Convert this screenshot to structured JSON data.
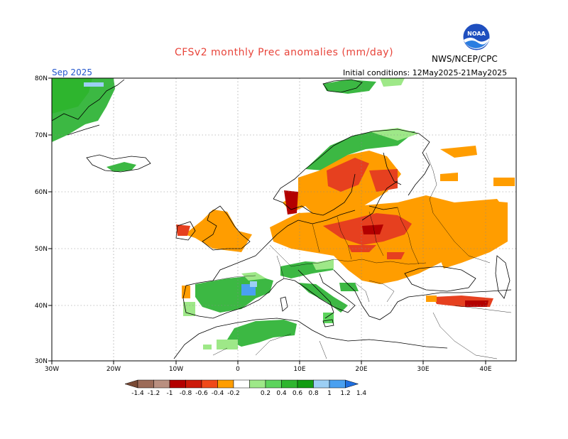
{
  "header": {
    "title": "CFSv2 monthly Prec anomalies (mm/day)",
    "valid_month": "Sep 2025",
    "init_conditions": "Initial conditions: 12May2025-21May2025",
    "agency": "NWS/NCEP/CPC",
    "logo_text": "NOAA"
  },
  "map": {
    "lon_range": [
      -30,
      45
    ],
    "lat_range": [
      30,
      80
    ],
    "x_ticks": [
      "30W",
      "20W",
      "10W",
      "0",
      "10E",
      "20E",
      "30E",
      "40E"
    ],
    "y_ticks": [
      "30N",
      "40N",
      "50N",
      "60N",
      "70N",
      "80N"
    ],
    "anomaly_regions": [
      {
        "name": "greenland-wet",
        "color": "#3cb843"
      },
      {
        "name": "north-scandinavia-wet",
        "color": "#3cb843"
      },
      {
        "name": "svalbard-wet",
        "color": "#3cb843"
      },
      {
        "name": "iceland-wet",
        "color": "#3cb843"
      },
      {
        "name": "alps-italy-wet",
        "color": "#3cb843"
      },
      {
        "name": "iberia-wet",
        "color": "#3cb843"
      },
      {
        "name": "north-africa-wet",
        "color": "#3cb843"
      },
      {
        "name": "central-europe-dry",
        "color": "#ff9d00"
      },
      {
        "name": "poland-dry",
        "color": "#e6401f"
      },
      {
        "name": "scandinavia-dry",
        "color": "#ff9d00"
      },
      {
        "name": "russia-dry",
        "color": "#ff9d00"
      },
      {
        "name": "uk-dry",
        "color": "#ff9d00"
      },
      {
        "name": "anatolia-dry",
        "color": "#e6401f"
      }
    ]
  },
  "legend": {
    "labels": [
      "-1.4",
      "-1.2",
      "-1",
      "-0.8",
      "-0.6",
      "-0.4",
      "-0.2",
      "0.2",
      "0.4",
      "0.6",
      "0.8",
      "1",
      "1.2",
      "1.4"
    ],
    "colors": [
      "#7a4a35",
      "#9c6b58",
      "#b98f80",
      "#b30000",
      "#cc1a0a",
      "#f04a1a",
      "#ff9d00",
      "#ffffff",
      "#9ee888",
      "#5cd35c",
      "#2eb52e",
      "#129c12",
      "#9ccff4",
      "#4aa0f0",
      "#1f6fe0"
    ]
  }
}
